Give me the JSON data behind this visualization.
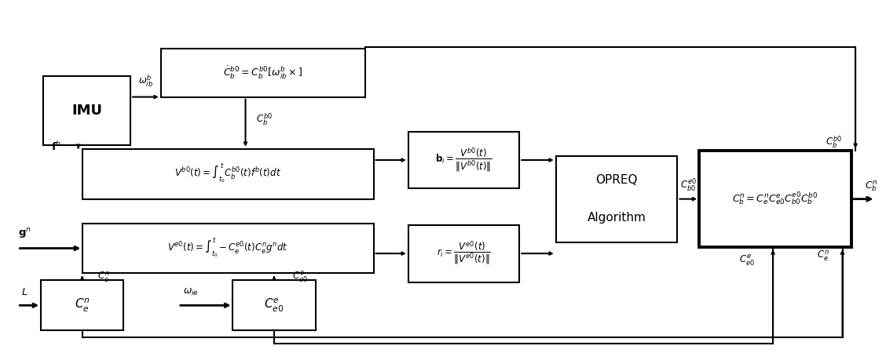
{
  "fig_width": 11.28,
  "fig_height": 4.5,
  "dpi": 100,
  "bg_color": "#ffffff",
  "lw": 1.5,
  "blocks": {
    "IMU": [
      0.04,
      0.59,
      0.1,
      0.2
    ],
    "dotCb": [
      0.175,
      0.73,
      0.235,
      0.14
    ],
    "Vb0": [
      0.085,
      0.435,
      0.335,
      0.145
    ],
    "bi": [
      0.46,
      0.465,
      0.128,
      0.165
    ],
    "Ve0": [
      0.085,
      0.22,
      0.335,
      0.145
    ],
    "ri": [
      0.46,
      0.195,
      0.128,
      0.165
    ],
    "OPREQ": [
      0.63,
      0.31,
      0.14,
      0.25
    ],
    "Cen": [
      0.037,
      0.055,
      0.095,
      0.145
    ],
    "Ce0e": [
      0.258,
      0.055,
      0.095,
      0.145
    ],
    "Final": [
      0.795,
      0.295,
      0.175,
      0.28
    ]
  },
  "labels": {
    "IMU": "IMU",
    "dotCb": "$\\dot{C}_b^{b0}=C_b^{b0}[\\omega_{ib}^b\\times]$",
    "Vb0": "$V^{b0}(t)=\\int_{t_0}^{t}C_b^{b0}(t)f^b(t)dt$",
    "bi": "$\\mathbf{b}_i=\\dfrac{V^{b0}(t)}{\\|V^{b0}(t)\\|}$",
    "Ve0": "$V^{e0}(t)=\\int_{t_0}^{t}-C_e^{e0}(t)C_e^ng^ndt$",
    "ri": "$r_i=\\dfrac{V^{e0}(t)}{\\|V^{e0}(t)\\|}$",
    "OPREQ": "OPREQ\nAlgorithm",
    "Cen": "$C_e^n$",
    "Ce0e": "$C_{e0}^e$",
    "Final": "$C_b^n=C_e^nC_{e0}^eC_{b0}^{e0}C_b^{b0}$"
  },
  "fontsizes": {
    "IMU": 13,
    "dotCb": 9.0,
    "Vb0": 8.5,
    "bi": 8.5,
    "Ve0": 8.5,
    "ri": 8.5,
    "OPREQ": 11,
    "Cen": 11,
    "Ce0e": 11,
    "Final": 9.0
  },
  "thick_blocks": [
    "Final"
  ],
  "bold_blocks": [
    "IMU"
  ]
}
